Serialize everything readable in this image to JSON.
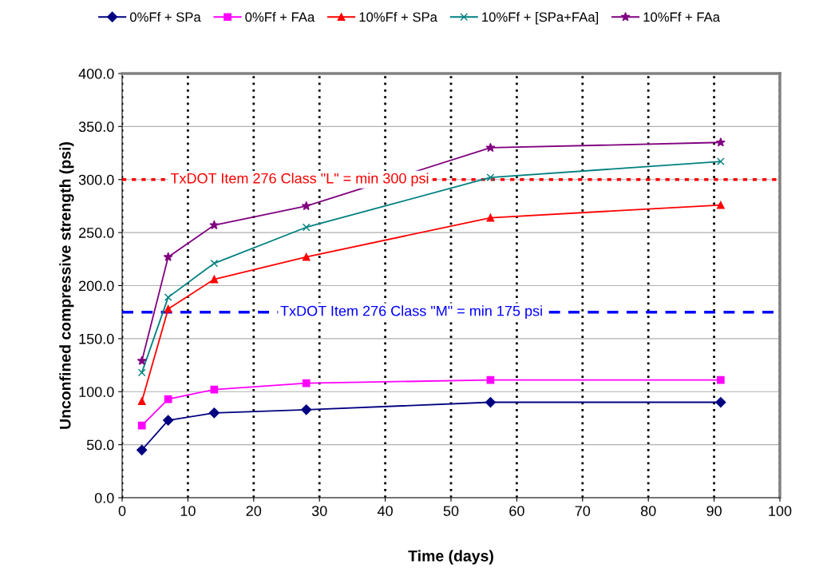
{
  "chart_data": {
    "type": "line",
    "xlabel": "Time (days)",
    "ylabel": "Unconfined compressive strength (psi)",
    "x": [
      3,
      7,
      14,
      28,
      56,
      91
    ],
    "series": [
      {
        "name": "0%Ff + SPa",
        "color": "#000080",
        "marker": "diamond",
        "values": [
          45,
          73,
          80,
          83,
          90,
          90
        ]
      },
      {
        "name": "0%Ff + FAa",
        "color": "#ff00ff",
        "marker": "square",
        "values": [
          68,
          93,
          102,
          108,
          111,
          111
        ]
      },
      {
        "name": "10%Ff + SPa",
        "color": "#ff0000",
        "marker": "triangle",
        "values": [
          91,
          178,
          206,
          227,
          264,
          276
        ]
      },
      {
        "name": "10%Ff + [SPa+FAa]",
        "color": "#008080",
        "marker": "cross",
        "values": [
          118,
          189,
          221,
          255,
          302,
          317
        ]
      },
      {
        "name": "10%Ff + FAa",
        "color": "#800080",
        "marker": "star",
        "values": [
          129,
          227,
          257,
          275,
          330,
          335
        ]
      }
    ],
    "xlim": [
      0,
      100
    ],
    "xticks": [
      0,
      10,
      20,
      30,
      40,
      50,
      60,
      70,
      80,
      90,
      100
    ],
    "ylim": [
      0,
      400
    ],
    "yticks": [
      {
        "value": 0,
        "label": "0.0"
      },
      {
        "value": 50,
        "label": "50.0"
      },
      {
        "value": 100,
        "label": "100.0"
      },
      {
        "value": 150,
        "label": "150.0"
      },
      {
        "value": 200,
        "label": "200.0"
      },
      {
        "value": 250,
        "label": "250.0"
      },
      {
        "value": 300,
        "label": "300.0"
      },
      {
        "value": 350,
        "label": "350.0"
      },
      {
        "value": 400,
        "label": "400.0"
      }
    ],
    "ref_lines": [
      {
        "axis": "y",
        "value": 300,
        "label": "TxDOT Item 276 Class \"L\" = min 300 psi",
        "color": "#ff0000",
        "line_style": "dotted"
      },
      {
        "axis": "y",
        "value": 175,
        "label": "TxDOT Item 276 Class \"M\" = min 175 psi",
        "color": "#0000ff",
        "line_style": "dashed"
      }
    ],
    "grid": true,
    "legend": "top"
  }
}
